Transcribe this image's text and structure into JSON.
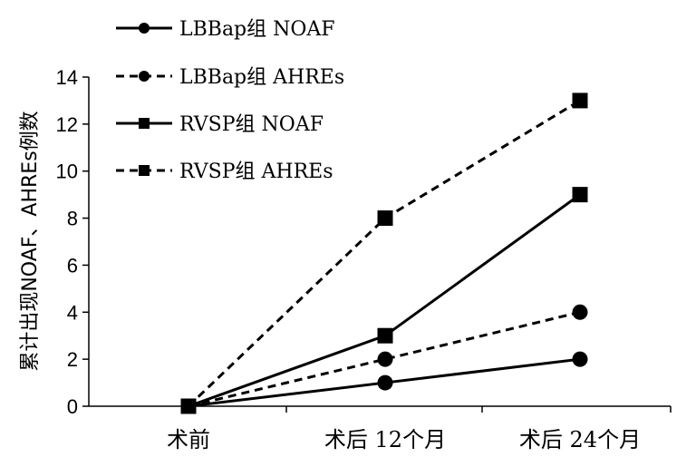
{
  "chart_data": {
    "type": "line",
    "categories": [
      "术前",
      "术后 12个月",
      "术后 24个月"
    ],
    "ylabel": "累计出现NOAF、AHREs例数",
    "ylim": [
      0,
      14
    ],
    "yticks": [
      0,
      2,
      4,
      6,
      8,
      10,
      12,
      14
    ],
    "grid": false,
    "legend_position": "top-left",
    "series": [
      {
        "name": "LBBap组 NOAF",
        "values": [
          0,
          1,
          2
        ],
        "line_style": "solid",
        "marker": "circle",
        "color": "#000000"
      },
      {
        "name": "LBBap组 AHREs",
        "values": [
          0,
          2,
          4
        ],
        "line_style": "dashed",
        "marker": "circle",
        "color": "#000000"
      },
      {
        "name": "RVSP组 NOAF",
        "values": [
          0,
          3,
          9
        ],
        "line_style": "solid",
        "marker": "square",
        "color": "#000000"
      },
      {
        "name": "RVSP组 AHREs",
        "values": [
          0,
          8,
          13
        ],
        "line_style": "dashed",
        "marker": "square",
        "color": "#000000"
      }
    ]
  }
}
